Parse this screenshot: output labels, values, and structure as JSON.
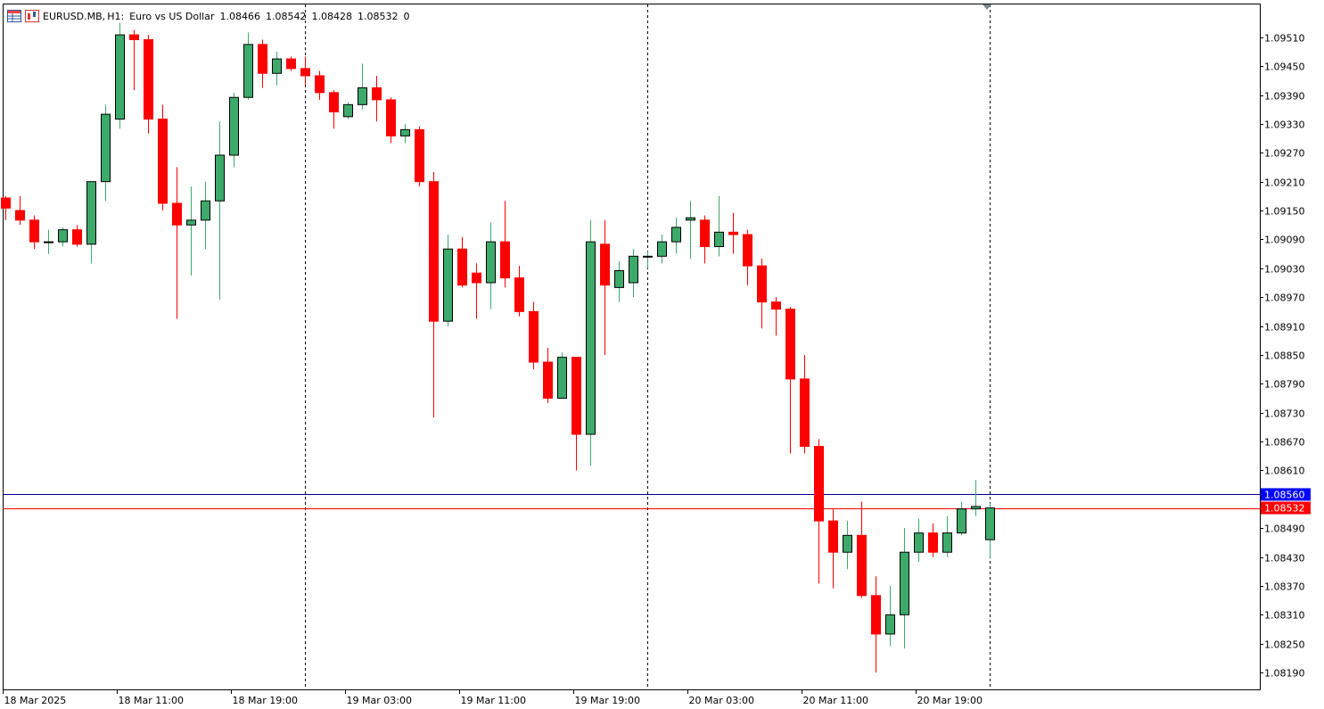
{
  "header": {
    "symbol": "EURUSD.MB,",
    "timeframe": "H1:",
    "description": "Euro vs US Dollar",
    "open": "1.08466",
    "high": "1.08542",
    "low": "1.08428",
    "close": "1.08532",
    "volume": "0"
  },
  "icons": [
    "table-icon",
    "chart-type-icon"
  ],
  "colors": {
    "bull": "#3daa6b",
    "bear": "#ff0000",
    "wick": "#000000",
    "bid_line": "#ff0000",
    "ask_line": "#00008b",
    "ask_tag": "#0000ff",
    "bid_tag": "#ff0000"
  },
  "chart_data": {
    "type": "candlestick",
    "symbol": "EURUSD.MB",
    "timeframe": "H1",
    "ylim": [
      1.08155,
      1.0958
    ],
    "y_ticks": [
      "1.09510",
      "1.09450",
      "1.09390",
      "1.09330",
      "1.09270",
      "1.09210",
      "1.09150",
      "1.09090",
      "1.09030",
      "1.08970",
      "1.08910",
      "1.08850",
      "1.08790",
      "1.08730",
      "1.08670",
      "1.08610",
      "1.08490",
      "1.08430",
      "1.08370",
      "1.08310",
      "1.08250",
      "1.08190"
    ],
    "x_ticks": [
      {
        "i": 0,
        "label": "18 Mar 2025"
      },
      {
        "i": 8,
        "label": "18 Mar 11:00"
      },
      {
        "i": 16,
        "label": "18 Mar 19:00"
      },
      {
        "i": 24,
        "label": "19 Mar 03:00"
      },
      {
        "i": 32,
        "label": "19 Mar 11:00"
      },
      {
        "i": 40,
        "label": "19 Mar 19:00"
      },
      {
        "i": 48,
        "label": "20 Mar 03:00"
      },
      {
        "i": 56,
        "label": "20 Mar 11:00"
      },
      {
        "i": 64,
        "label": "20 Mar 19:00"
      }
    ],
    "separators": [
      21,
      45,
      69
    ],
    "ask_price": "1.08560",
    "bid_price": "1.08532",
    "candles": [
      [
        1.09176,
        1.0918,
        1.0913,
        1.09155
      ],
      [
        1.0915,
        1.0918,
        1.0912,
        1.0913
      ],
      [
        1.0913,
        1.0914,
        1.0907,
        1.09085
      ],
      [
        1.09085,
        1.0911,
        1.0906,
        1.09085
      ],
      [
        1.09085,
        1.09115,
        1.09075,
        1.0911
      ],
      [
        1.0911,
        1.0912,
        1.09075,
        1.0908
      ],
      [
        1.0908,
        1.0921,
        1.0904,
        1.0921
      ],
      [
        1.0921,
        1.0937,
        1.0917,
        1.0935
      ],
      [
        1.0934,
        1.0954,
        1.0932,
        1.09515
      ],
      [
        1.09515,
        1.09525,
        1.094,
        1.09505
      ],
      [
        1.09505,
        1.09515,
        1.0931,
        1.0934
      ],
      [
        1.0934,
        1.0937,
        1.0915,
        1.09165
      ],
      [
        1.09165,
        1.0924,
        1.08925,
        1.0912
      ],
      [
        1.0912,
        1.092,
        1.09015,
        1.0913
      ],
      [
        1.0913,
        1.0921,
        1.0907,
        1.0917
      ],
      [
        1.0917,
        1.09335,
        1.08965,
        1.09265
      ],
      [
        1.09265,
        1.09395,
        1.0924,
        1.09385
      ],
      [
        1.09385,
        1.0952,
        1.0938,
        1.09495
      ],
      [
        1.09495,
        1.09505,
        1.09405,
        1.09435
      ],
      [
        1.09435,
        1.0948,
        1.0941,
        1.09465
      ],
      [
        1.09465,
        1.0947,
        1.0944,
        1.09445
      ],
      [
        1.09445,
        1.0947,
        1.0941,
        1.0943
      ],
      [
        1.0943,
        1.0944,
        1.0938,
        1.09395
      ],
      [
        1.09395,
        1.094,
        1.0932,
        1.09355
      ],
      [
        1.09345,
        1.09375,
        1.0934,
        1.0937
      ],
      [
        1.0937,
        1.09455,
        1.0936,
        1.09405
      ],
      [
        1.09405,
        1.0943,
        1.09335,
        1.0938
      ],
      [
        1.0938,
        1.09385,
        1.0929,
        1.09305
      ],
      [
        1.09305,
        1.0933,
        1.0929,
        1.09318
      ],
      [
        1.09318,
        1.09325,
        1.092,
        1.0921
      ],
      [
        1.0921,
        1.0923,
        1.0872,
        1.0892
      ],
      [
        1.0892,
        1.091,
        1.0891,
        1.0907
      ],
      [
        1.0907,
        1.09095,
        1.0899,
        1.08995
      ],
      [
        1.0902,
        1.0904,
        1.08925,
        1.09
      ],
      [
        1.09,
        1.09125,
        1.08945,
        1.09085
      ],
      [
        1.09085,
        1.0917,
        1.0899,
        1.0901
      ],
      [
        1.0901,
        1.09035,
        1.0893,
        1.0894
      ],
      [
        1.0894,
        1.0896,
        1.0882,
        1.08835
      ],
      [
        1.08835,
        1.08865,
        1.0875,
        1.0876
      ],
      [
        1.0876,
        1.08855,
        1.0877,
        1.08845
      ],
      [
        1.08845,
        1.08845,
        1.0861,
        1.08685
      ],
      [
        1.08685,
        1.0913,
        1.0862,
        1.09085
      ],
      [
        1.0908,
        1.0913,
        1.0885,
        1.08995
      ],
      [
        1.0899,
        1.09045,
        1.0896,
        1.09025
      ],
      [
        1.09,
        1.0907,
        1.0897,
        1.09055
      ],
      [
        1.09055,
        1.09065,
        1.0903,
        1.09055
      ],
      [
        1.09055,
        1.091,
        1.0904,
        1.09085
      ],
      [
        1.09085,
        1.09135,
        1.0906,
        1.09115
      ],
      [
        1.0913,
        1.0917,
        1.0905,
        1.09135
      ],
      [
        1.0913,
        1.0914,
        1.0904,
        1.09075
      ],
      [
        1.09075,
        1.0918,
        1.09055,
        1.09105
      ],
      [
        1.09105,
        1.09145,
        1.0906,
        1.091
      ],
      [
        1.091,
        1.0911,
        1.08995,
        1.09035
      ],
      [
        1.09035,
        1.0905,
        1.08905,
        1.0896
      ],
      [
        1.0896,
        1.0897,
        1.0889,
        1.08945
      ],
      [
        1.08945,
        1.0895,
        1.08645,
        1.088
      ],
      [
        1.088,
        1.0885,
        1.08645,
        1.0866
      ],
      [
        1.0866,
        1.08675,
        1.08375,
        1.08505
      ],
      [
        1.08505,
        1.0853,
        1.08365,
        1.0844
      ],
      [
        1.0844,
        1.08505,
        1.08405,
        1.08475
      ],
      [
        1.08475,
        1.08545,
        1.08345,
        1.0835
      ],
      [
        1.0835,
        1.0839,
        1.0819,
        1.0827
      ],
      [
        1.0827,
        1.0837,
        1.08245,
        1.0831
      ],
      [
        1.0831,
        1.0849,
        1.0824,
        1.0844
      ],
      [
        1.0844,
        1.0851,
        1.0842,
        1.0848
      ],
      [
        1.0848,
        1.085,
        1.0843,
        1.0844
      ],
      [
        1.0844,
        1.08515,
        1.0843,
        1.0848
      ],
      [
        1.0848,
        1.08545,
        1.08475,
        1.0853
      ],
      [
        1.0853,
        1.0859,
        1.08515,
        1.08535
      ],
      [
        1.08466,
        1.08542,
        1.08428,
        1.08532
      ]
    ]
  }
}
